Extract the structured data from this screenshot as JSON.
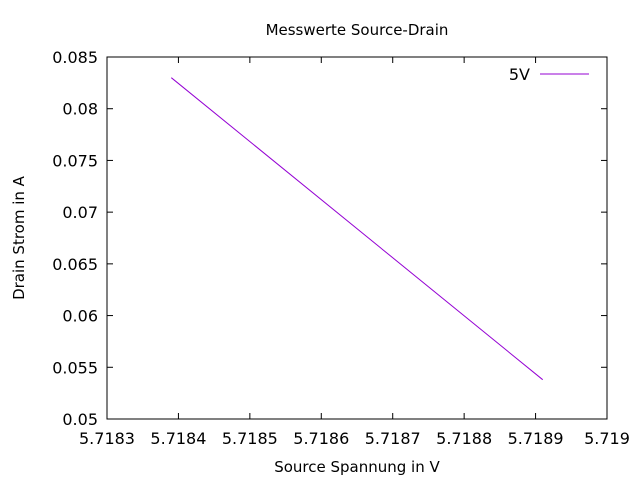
{
  "chart_data": {
    "type": "line",
    "title": "Messwerte Source-Drain",
    "xlabel": "Source Spannung in V",
    "ylabel": "Drain Strom in A",
    "xlim": [
      5.7183,
      5.719
    ],
    "ylim": [
      0.05,
      0.085
    ],
    "x_ticks": [
      "5.7183",
      "5.7184",
      "5.7185",
      "5.7186",
      "5.7187",
      "5.7188",
      "5.7189",
      "5.719"
    ],
    "y_ticks": [
      "0.05",
      "0.055",
      "0.06",
      "0.065",
      "0.07",
      "0.075",
      "0.08",
      "0.085"
    ],
    "grid": false,
    "legend_position": "top-right",
    "series": [
      {
        "name": "5V",
        "color": "#9400d3",
        "x": [
          5.71839,
          5.71891
        ],
        "y": [
          0.083,
          0.0538
        ]
      }
    ]
  }
}
